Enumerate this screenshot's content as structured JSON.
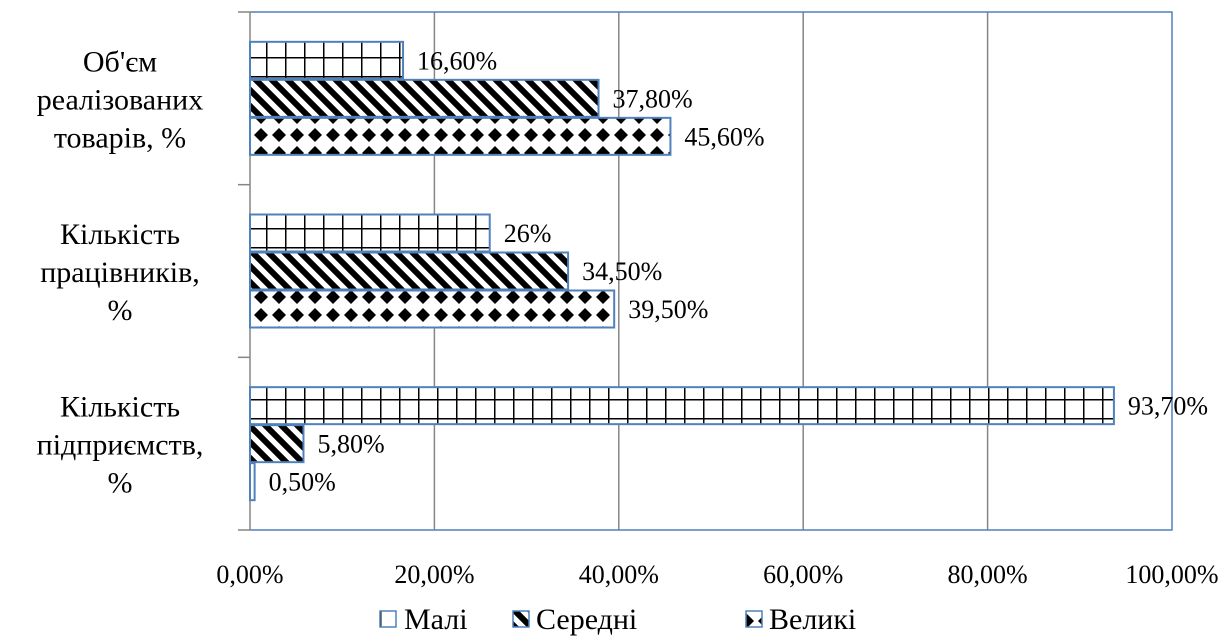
{
  "chart_data": {
    "type": "bar",
    "orientation": "horizontal",
    "categories": [
      [
        "Об'єм",
        "реалізованих",
        "товарів, %"
      ],
      [
        "Кількість",
        "працівників,",
        "%"
      ],
      [
        "Кількість",
        "підприємств,",
        "%"
      ]
    ],
    "series": [
      {
        "name": "Малі",
        "values": [
          16.6,
          26.0,
          93.7
        ],
        "labels": [
          "16,60%",
          "26%",
          "93,70%"
        ],
        "pattern": "grid"
      },
      {
        "name": "Середні",
        "values": [
          37.8,
          34.5,
          5.8
        ],
        "labels": [
          "37,80%",
          "34,50%",
          "5,80%"
        ],
        "pattern": "diagonal"
      },
      {
        "name": "Великі",
        "values": [
          45.6,
          39.5,
          0.5
        ],
        "labels": [
          "45,60%",
          "39,50%",
          "0,50%"
        ],
        "pattern": "diamond"
      }
    ],
    "xlim": [
      0,
      100
    ],
    "xticks": [
      0,
      20,
      40,
      60,
      80,
      100
    ],
    "xtick_labels": [
      "0,00%",
      "20,00%",
      "40,00%",
      "60,00%",
      "80,00%",
      "100,00%"
    ],
    "grid": true,
    "legend_position": "bottom",
    "colors": {
      "bar_border": "#4f81bd",
      "gridline": "#868686",
      "plot_border": "#4f81bd"
    }
  }
}
